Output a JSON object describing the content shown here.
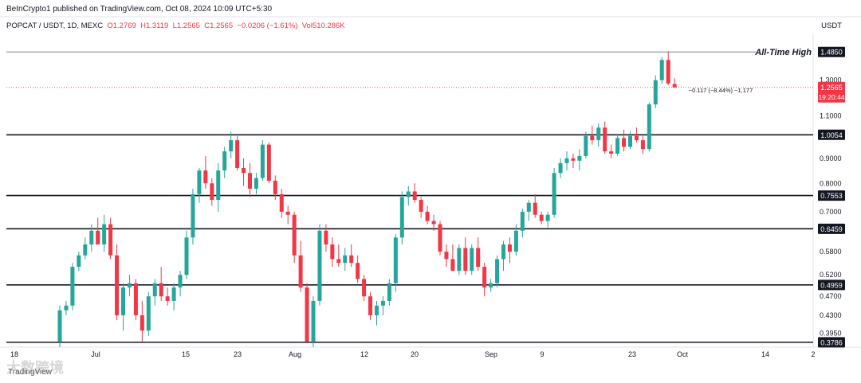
{
  "header": {
    "publisher": "BeInCrypto1 published on TradingView.com, Oct 08, 2024 10:09 UTC+5:30"
  },
  "ticker": {
    "symbol": "POPCAT / USDT, 1D, MEXC",
    "open": "O1.2769",
    "high": "H1.3119",
    "low": "L1.2565",
    "close": "C1.2565",
    "change": "−0.0206 (−1.61%)",
    "volume": "Vol510.286K"
  },
  "currency": "USDT",
  "watermark": {
    "brand": "TradingView",
    "overlay": "大数跨境"
  },
  "colors": {
    "up": "#26a69a",
    "down": "#f23645",
    "level": "#131722"
  },
  "chart_data": {
    "type": "candlestick",
    "title": "",
    "ylim": [
      0.37,
      1.62
    ],
    "y_scale": "log",
    "y_ticks": [
      "1.3000",
      "1.1000",
      "0.9000",
      "0.8000",
      "0.7000",
      "0.5800",
      "0.5200",
      "0.4700",
      "0.4300",
      "0.3950"
    ],
    "x_ticks": [
      "18",
      "Jul",
      "15",
      "23",
      "Aug",
      "12",
      "20",
      "Sep",
      "9",
      "23",
      "Oct",
      "14",
      "2"
    ],
    "levels": [
      {
        "value": 1.485,
        "label": "1.4850",
        "annotation": "All-Time High"
      },
      {
        "value": 1.0054,
        "label": "1.0054"
      },
      {
        "value": 0.7553,
        "label": "0.7553"
      },
      {
        "value": 0.6459,
        "label": "0.6459"
      },
      {
        "value": 0.4959,
        "label": "0.4959"
      },
      {
        "value": 0.3786,
        "label": "0.3786"
      }
    ],
    "last_price": {
      "value": 1.2565,
      "label": "1.2565",
      "countdown": "19:20:44"
    },
    "measure_label": "−0.117 (−8.44%) −1,177",
    "candles": [
      [
        0.38,
        0.45,
        0.37,
        0.44
      ],
      [
        0.44,
        0.46,
        0.43,
        0.45
      ],
      [
        0.45,
        0.55,
        0.44,
        0.54
      ],
      [
        0.54,
        0.58,
        0.53,
        0.57
      ],
      [
        0.57,
        0.62,
        0.56,
        0.6
      ],
      [
        0.6,
        0.66,
        0.58,
        0.64
      ],
      [
        0.64,
        0.68,
        0.6,
        0.6
      ],
      [
        0.6,
        0.69,
        0.58,
        0.66
      ],
      [
        0.66,
        0.68,
        0.56,
        0.57
      ],
      [
        0.57,
        0.6,
        0.42,
        0.43
      ],
      [
        0.43,
        0.5,
        0.4,
        0.49
      ],
      [
        0.49,
        0.52,
        0.47,
        0.5
      ],
      [
        0.5,
        0.51,
        0.42,
        0.43
      ],
      [
        0.43,
        0.46,
        0.38,
        0.4
      ],
      [
        0.4,
        0.48,
        0.39,
        0.47
      ],
      [
        0.47,
        0.51,
        0.45,
        0.5
      ],
      [
        0.5,
        0.54,
        0.46,
        0.47
      ],
      [
        0.47,
        0.49,
        0.45,
        0.46
      ],
      [
        0.46,
        0.5,
        0.44,
        0.49
      ],
      [
        0.49,
        0.53,
        0.47,
        0.52
      ],
      [
        0.52,
        0.64,
        0.51,
        0.62
      ],
      [
        0.62,
        0.78,
        0.6,
        0.76
      ],
      [
        0.76,
        0.86,
        0.73,
        0.85
      ],
      [
        0.85,
        0.91,
        0.78,
        0.8
      ],
      [
        0.8,
        0.82,
        0.72,
        0.74
      ],
      [
        0.74,
        0.88,
        0.7,
        0.85
      ],
      [
        0.85,
        0.95,
        0.82,
        0.93
      ],
      [
        0.93,
        1.02,
        0.9,
        0.98
      ],
      [
        0.98,
        1.0,
        0.85,
        0.86
      ],
      [
        0.86,
        0.9,
        0.79,
        0.84
      ],
      [
        0.84,
        0.88,
        0.75,
        0.78
      ],
      [
        0.78,
        0.84,
        0.76,
        0.82
      ],
      [
        0.82,
        0.98,
        0.81,
        0.96
      ],
      [
        0.96,
        0.97,
        0.8,
        0.81
      ],
      [
        0.81,
        0.83,
        0.74,
        0.76
      ],
      [
        0.76,
        0.78,
        0.68,
        0.7
      ],
      [
        0.7,
        0.72,
        0.66,
        0.69
      ],
      [
        0.69,
        0.7,
        0.55,
        0.57
      ],
      [
        0.57,
        0.61,
        0.48,
        0.49
      ],
      [
        0.49,
        0.5,
        0.38,
        0.38
      ],
      [
        0.38,
        0.47,
        0.37,
        0.46
      ],
      [
        0.46,
        0.66,
        0.45,
        0.64
      ],
      [
        0.64,
        0.66,
        0.58,
        0.6
      ],
      [
        0.6,
        0.62,
        0.54,
        0.56
      ],
      [
        0.56,
        0.6,
        0.54,
        0.55
      ],
      [
        0.55,
        0.59,
        0.53,
        0.57
      ],
      [
        0.57,
        0.6,
        0.54,
        0.55
      ],
      [
        0.55,
        0.57,
        0.5,
        0.51
      ],
      [
        0.51,
        0.52,
        0.46,
        0.47
      ],
      [
        0.47,
        0.48,
        0.42,
        0.43
      ],
      [
        0.43,
        0.46,
        0.41,
        0.45
      ],
      [
        0.45,
        0.47,
        0.43,
        0.46
      ],
      [
        0.46,
        0.51,
        0.45,
        0.5
      ],
      [
        0.5,
        0.63,
        0.48,
        0.62
      ],
      [
        0.62,
        0.77,
        0.6,
        0.75
      ],
      [
        0.75,
        0.79,
        0.72,
        0.77
      ],
      [
        0.77,
        0.8,
        0.73,
        0.74
      ],
      [
        0.74,
        0.75,
        0.68,
        0.7
      ],
      [
        0.7,
        0.72,
        0.66,
        0.67
      ],
      [
        0.67,
        0.69,
        0.64,
        0.66
      ],
      [
        0.66,
        0.67,
        0.57,
        0.58
      ],
      [
        0.58,
        0.6,
        0.54,
        0.56
      ],
      [
        0.56,
        0.6,
        0.53,
        0.53
      ],
      [
        0.53,
        0.6,
        0.52,
        0.59
      ],
      [
        0.59,
        0.62,
        0.52,
        0.53
      ],
      [
        0.53,
        0.6,
        0.52,
        0.59
      ],
      [
        0.59,
        0.62,
        0.53,
        0.54
      ],
      [
        0.54,
        0.55,
        0.47,
        0.49
      ],
      [
        0.49,
        0.51,
        0.48,
        0.5
      ],
      [
        0.5,
        0.57,
        0.49,
        0.56
      ],
      [
        0.56,
        0.61,
        0.53,
        0.6
      ],
      [
        0.6,
        0.62,
        0.55,
        0.58
      ],
      [
        0.58,
        0.66,
        0.57,
        0.64
      ],
      [
        0.64,
        0.71,
        0.62,
        0.7
      ],
      [
        0.7,
        0.74,
        0.67,
        0.73
      ],
      [
        0.73,
        0.76,
        0.68,
        0.69
      ],
      [
        0.69,
        0.7,
        0.66,
        0.67
      ],
      [
        0.67,
        0.7,
        0.65,
        0.69
      ],
      [
        0.69,
        0.86,
        0.68,
        0.84
      ],
      [
        0.84,
        0.9,
        0.82,
        0.88
      ],
      [
        0.88,
        0.93,
        0.85,
        0.9
      ],
      [
        0.9,
        0.92,
        0.86,
        0.89
      ],
      [
        0.89,
        0.94,
        0.85,
        0.91
      ],
      [
        0.91,
        1.02,
        0.9,
        1.0
      ],
      [
        1.0,
        1.05,
        0.96,
        0.98
      ],
      [
        0.98,
        1.06,
        0.95,
        1.04
      ],
      [
        1.04,
        1.07,
        0.92,
        0.93
      ],
      [
        0.93,
        0.96,
        0.9,
        0.92
      ],
      [
        0.92,
        1.01,
        0.91,
        0.99
      ],
      [
        0.99,
        1.03,
        0.93,
        0.95
      ],
      [
        0.95,
        1.02,
        0.94,
        1.0
      ],
      [
        1.0,
        1.04,
        0.97,
        0.98
      ],
      [
        0.98,
        1.0,
        0.92,
        0.94
      ],
      [
        0.94,
        1.17,
        0.93,
        1.16
      ],
      [
        1.16,
        1.33,
        1.14,
        1.3
      ],
      [
        1.3,
        1.45,
        1.28,
        1.43
      ],
      [
        1.43,
        1.49,
        1.27,
        1.28
      ],
      [
        1.2769,
        1.3119,
        1.2565,
        1.2565
      ]
    ]
  }
}
